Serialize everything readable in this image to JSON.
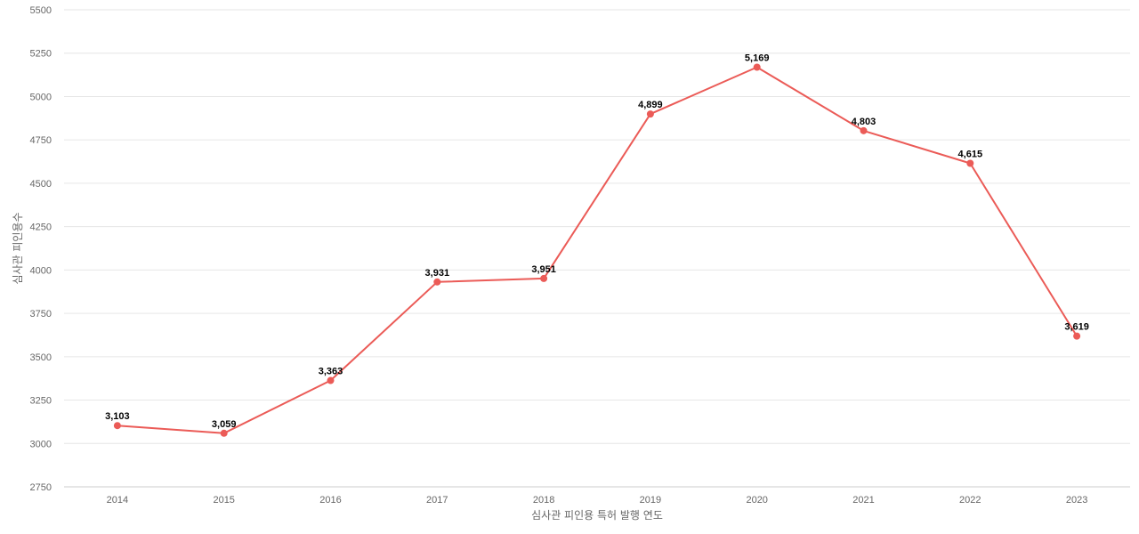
{
  "chart_data": {
    "type": "line",
    "x": [
      "2014",
      "2015",
      "2016",
      "2017",
      "2018",
      "2019",
      "2020",
      "2021",
      "2022",
      "2023"
    ],
    "series": [
      {
        "values": [
          3103,
          3059,
          3363,
          3931,
          3951,
          4899,
          5169,
          4803,
          4615,
          3619
        ],
        "color": "#eb5b57"
      }
    ],
    "data_labels": [
      "3,103",
      "3,059",
      "3,363",
      "3,931",
      "3,951",
      "4,899",
      "5,169",
      "4,803",
      "4,615",
      "3,619"
    ],
    "xlabel": "심사관 피인용 특허 발행 연도",
    "ylabel": "심사관 피인용수",
    "ylim": [
      2750,
      5500
    ],
    "yticks": [
      "2750",
      "3000",
      "3250",
      "3500",
      "3750",
      "4000",
      "4250",
      "4500",
      "4750",
      "5000",
      "5250",
      "5500"
    ],
    "grid": true,
    "legend": "none"
  }
}
